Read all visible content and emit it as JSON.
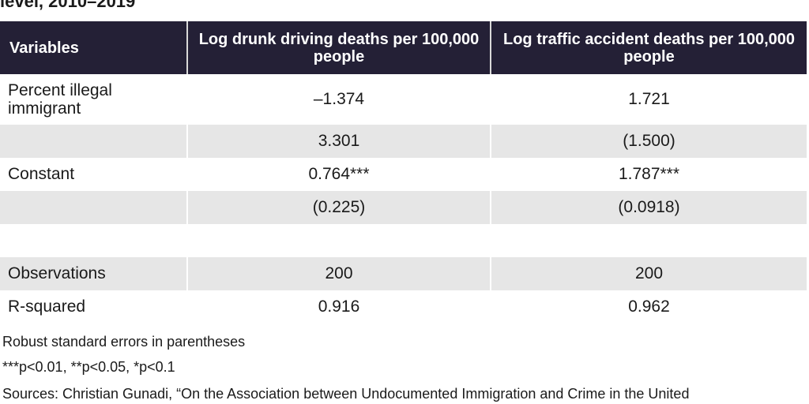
{
  "title_fragment": "level, 2010–2019",
  "table": {
    "headers": [
      "Variables",
      "Log drunk driving deaths per 100,000 people",
      "Log traffic accident deaths per 100,000 people"
    ],
    "rows": [
      [
        "Percent illegal immigrant",
        "–1.374",
        "1.721"
      ],
      [
        "",
        "3.301",
        "(1.500)"
      ],
      [
        "Constant",
        "0.764***",
        "1.787***"
      ],
      [
        "",
        "(0.225)",
        "(0.0918)"
      ],
      [
        "",
        "",
        ""
      ],
      [
        "Observations",
        "200",
        "200"
      ],
      [
        "R-squared",
        "0.916",
        "0.962"
      ]
    ]
  },
  "notes": {
    "robust": "Robust standard errors in parentheses",
    "significance": "***p<0.01, **p<0.05, *p<0.1",
    "sources": "Sources: Christian Gunadi, “On the Association between Undocumented Immigration and Crime in the United"
  }
}
